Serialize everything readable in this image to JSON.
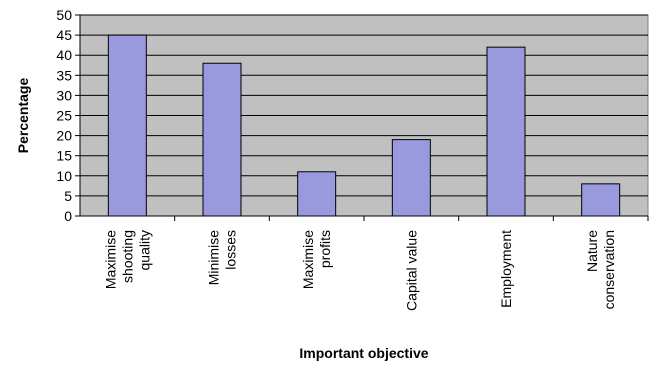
{
  "chart_data": {
    "type": "bar",
    "title": "",
    "xlabel": "Important objective",
    "ylabel": "Percentage",
    "ylim": [
      0,
      50
    ],
    "yticks": [
      0,
      5,
      10,
      15,
      20,
      25,
      30,
      35,
      40,
      45,
      50
    ],
    "grid": true,
    "legend": "none",
    "categories": [
      [
        "Maximise",
        "shooting",
        "quality"
      ],
      [
        "Minimise",
        "losses"
      ],
      [
        "Maximise",
        "profits"
      ],
      [
        "Capital value"
      ],
      [
        "Employment"
      ],
      [
        "Nature",
        "conservation"
      ]
    ],
    "values": [
      45,
      38,
      11,
      19,
      42,
      8
    ],
    "colors": {
      "bar": "#9999dd",
      "plot_background": "#c0c0c0",
      "gridline": "#000000"
    }
  }
}
